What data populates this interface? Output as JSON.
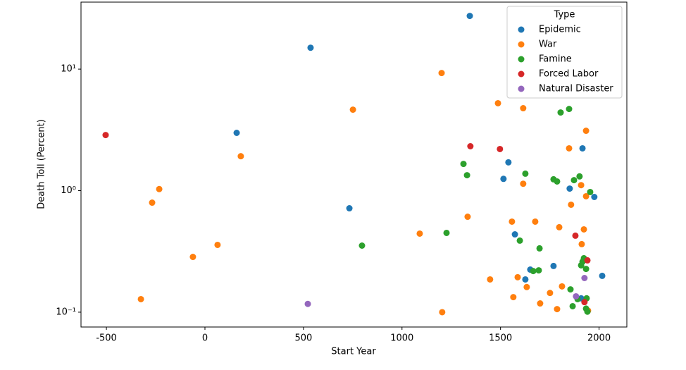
{
  "chart_data": {
    "type": "scatter",
    "xlabel": "Start Year",
    "ylabel": "Death Toll (Percent)",
    "legend_title": "Type",
    "legend": "upper right",
    "yscale": "log",
    "xlim": [
      -629,
      2141
    ],
    "ylim": [
      0.0755,
      35.6
    ],
    "xticks": [
      -500,
      0,
      500,
      1000,
      1500,
      2000
    ],
    "yticks": [
      {
        "value": 0.1,
        "label": "10⁻¹"
      },
      {
        "value": 1,
        "label": "10⁰"
      },
      {
        "value": 10,
        "label": "10¹"
      }
    ],
    "series": [
      {
        "name": "Epidemic",
        "color": "#1f77b4",
        "x": [
          1344,
          536,
          161,
          733,
          1540,
          1515,
          1916,
          1851,
          1976,
          1573,
          1651,
          1626,
          1769,
          2016,
          1909
        ],
        "values": [
          27.4,
          15.0,
          2.99,
          0.716,
          1.71,
          1.25,
          2.23,
          1.04,
          0.887,
          0.437,
          0.224,
          0.186,
          0.24,
          0.199,
          0.13
        ]
      },
      {
        "name": "War",
        "color": "#ff7f0e",
        "x": [
          1201,
          751,
          1487,
          1615,
          1934,
          1848,
          182,
          -232,
          -268,
          1615,
          1909,
          1934,
          1858,
          1333,
          1558,
          1676,
          1798,
          1923,
          1090,
          1912,
          64,
          -61,
          1447,
          1587,
          1633,
          1812,
          1751,
          1565,
          -325,
          1701,
          1787,
          1204,
          1944
        ],
        "values": [
          9.29,
          4.64,
          5.24,
          4.77,
          3.11,
          2.23,
          1.92,
          1.03,
          0.797,
          1.14,
          1.11,
          0.899,
          0.766,
          0.61,
          0.556,
          0.556,
          0.5,
          0.48,
          0.443,
          0.363,
          0.358,
          0.285,
          0.186,
          0.194,
          0.161,
          0.163,
          0.144,
          0.133,
          0.128,
          0.118,
          0.106,
          0.1,
          0.103
        ]
      },
      {
        "name": "Famine",
        "color": "#2ca02c",
        "x": [
          1805,
          1848,
          1312,
          1330,
          1626,
          1769,
          1787,
          1901,
          1873,
          1955,
          1226,
          797,
          1598,
          1698,
          1923,
          1916,
          1909,
          1934,
          1666,
          1694,
          1855,
          1891,
          1937,
          1866,
          1934,
          1941
        ],
        "values": [
          4.4,
          4.7,
          1.66,
          1.34,
          1.38,
          1.24,
          1.19,
          1.31,
          1.22,
          0.974,
          0.449,
          0.353,
          0.388,
          0.335,
          0.278,
          0.26,
          0.243,
          0.227,
          0.218,
          0.221,
          0.154,
          0.128,
          0.13,
          0.112,
          0.107,
          0.101
        ]
      },
      {
        "name": "Forced Labor",
        "color": "#d62728",
        "x": [
          -504,
          1347,
          1497,
          1880,
          1941,
          1926
        ],
        "values": [
          2.87,
          2.32,
          2.2,
          0.426,
          0.267,
          0.121
        ]
      },
      {
        "name": "Natural Disaster",
        "color": "#9467bd",
        "x": [
          522,
          1926,
          1883
        ],
        "values": [
          0.117,
          0.191,
          0.135
        ]
      }
    ]
  }
}
